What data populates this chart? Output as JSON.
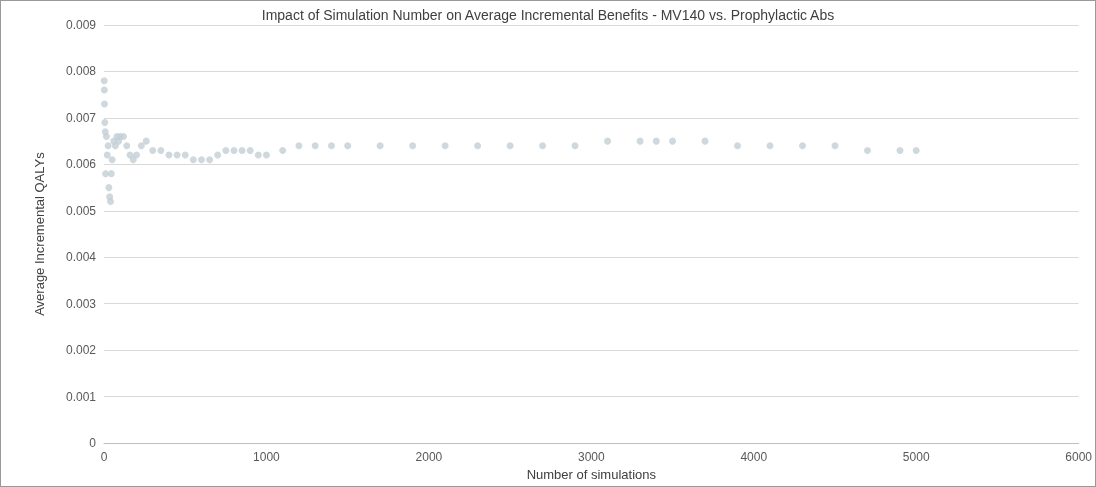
{
  "chart_data": {
    "type": "scatter",
    "title": "Impact of Simulation Number on Average Incremental Benefits - MV140 vs. Prophylactic Abs",
    "xlabel": "Number of simulations",
    "ylabel": "Average Incremental QALYs",
    "xlim": [
      0,
      6000
    ],
    "xticks": [
      0,
      1000,
      2000,
      3000,
      4000,
      5000,
      6000
    ],
    "ylim": [
      0,
      0.009
    ],
    "yticks": [
      0,
      0.001,
      0.002,
      0.003,
      0.004,
      0.005,
      0.006,
      0.007,
      0.008,
      0.009
    ],
    "grid": "y",
    "marker": "circle",
    "series": [
      {
        "color": "#c3ced5",
        "x": [
          1,
          2,
          3,
          5,
          8,
          10,
          15,
          20,
          25,
          30,
          35,
          40,
          45,
          50,
          60,
          70,
          80,
          90,
          100,
          120,
          140,
          160,
          180,
          200,
          230,
          260,
          300,
          350,
          400,
          450,
          500,
          550,
          600,
          650,
          700,
          750,
          800,
          850,
          900,
          950,
          1000,
          1100,
          1200,
          1300,
          1400,
          1500,
          1700,
          1900,
          2100,
          2300,
          2500,
          2700,
          2900,
          3100,
          3300,
          3400,
          3500,
          3700,
          3900,
          4100,
          4300,
          4500,
          4700,
          4900,
          5000
        ],
        "values": [
          0.0078,
          0.0076,
          0.0073,
          0.0069,
          0.0067,
          0.0058,
          0.0066,
          0.0062,
          0.0064,
          0.0055,
          0.0053,
          0.0052,
          0.0058,
          0.0061,
          0.0065,
          0.0064,
          0.0066,
          0.0065,
          0.0066,
          0.0066,
          0.0064,
          0.0062,
          0.0061,
          0.0062,
          0.0064,
          0.0065,
          0.0063,
          0.0063,
          0.0062,
          0.0062,
          0.0062,
          0.0061,
          0.0061,
          0.0061,
          0.0062,
          0.0063,
          0.0063,
          0.0063,
          0.0063,
          0.0062,
          0.0062,
          0.0063,
          0.0064,
          0.0064,
          0.0064,
          0.0064,
          0.0064,
          0.0064,
          0.0064,
          0.0064,
          0.0064,
          0.0064,
          0.0064,
          0.0065,
          0.0065,
          0.0065,
          0.0065,
          0.0065,
          0.0064,
          0.0064,
          0.0064,
          0.0064,
          0.0063,
          0.0063,
          0.0063
        ]
      }
    ]
  }
}
